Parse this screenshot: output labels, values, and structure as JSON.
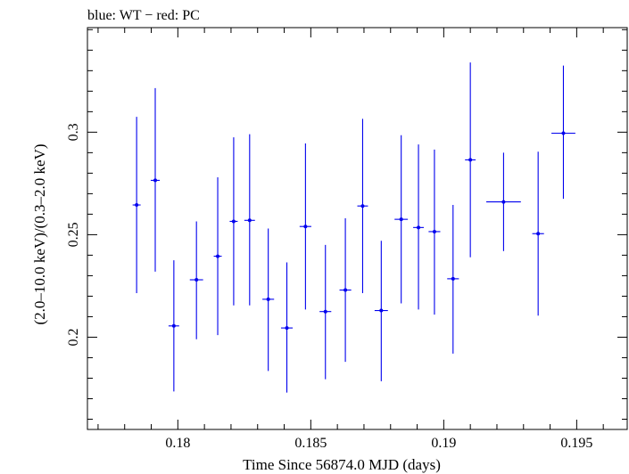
{
  "chart_data": {
    "type": "scatter",
    "title": "blue: WT − red: PC",
    "xlabel": "Time Since 56874.0 MJD (days)",
    "ylabel": "(2.0–10.0 keV)/(0.3–2.0 keV)",
    "xlim": [
      0.1766,
      0.1969
    ],
    "ylim": [
      0.155,
      0.351
    ],
    "x_ticks": [
      0.18,
      0.185,
      0.19,
      0.195
    ],
    "x_tick_labels": [
      "0.18",
      "0.185",
      "0.19",
      "0.195"
    ],
    "y_ticks": [
      0.2,
      0.25,
      0.3
    ],
    "y_tick_labels": [
      "0.2",
      "0.25",
      "0.3"
    ],
    "grid": false,
    "series": [
      {
        "color": "#0000ee",
        "points": [
          {
            "x": 0.17845,
            "xerr": 0.00015,
            "y": 0.2645,
            "ylo": 0.2215,
            "yhi": 0.3075
          },
          {
            "x": 0.17915,
            "xerr": 0.00017,
            "y": 0.2765,
            "ylo": 0.232,
            "yhi": 0.3215
          },
          {
            "x": 0.17985,
            "xerr": 0.0002,
            "y": 0.2055,
            "ylo": 0.1735,
            "yhi": 0.2375
          },
          {
            "x": 0.1807,
            "xerr": 0.00025,
            "y": 0.228,
            "ylo": 0.199,
            "yhi": 0.2565
          },
          {
            "x": 0.1815,
            "xerr": 0.00015,
            "y": 0.2395,
            "ylo": 0.201,
            "yhi": 0.278
          },
          {
            "x": 0.1821,
            "xerr": 0.00015,
            "y": 0.2565,
            "ylo": 0.2155,
            "yhi": 0.2975
          },
          {
            "x": 0.1827,
            "xerr": 0.0002,
            "y": 0.257,
            "ylo": 0.2155,
            "yhi": 0.299
          },
          {
            "x": 0.1834,
            "xerr": 0.00022,
            "y": 0.2185,
            "ylo": 0.1835,
            "yhi": 0.253
          },
          {
            "x": 0.1841,
            "xerr": 0.00022,
            "y": 0.2045,
            "ylo": 0.173,
            "yhi": 0.2365
          },
          {
            "x": 0.1848,
            "xerr": 0.00022,
            "y": 0.254,
            "ylo": 0.2135,
            "yhi": 0.2945
          },
          {
            "x": 0.18555,
            "xerr": 0.00022,
            "y": 0.2125,
            "ylo": 0.1795,
            "yhi": 0.245
          },
          {
            "x": 0.1863,
            "xerr": 0.00022,
            "y": 0.223,
            "ylo": 0.188,
            "yhi": 0.258
          },
          {
            "x": 0.18695,
            "xerr": 0.0002,
            "y": 0.264,
            "ylo": 0.2215,
            "yhi": 0.3065
          },
          {
            "x": 0.18765,
            "xerr": 0.00025,
            "y": 0.213,
            "ylo": 0.1785,
            "yhi": 0.247
          },
          {
            "x": 0.1884,
            "xerr": 0.00025,
            "y": 0.2575,
            "ylo": 0.2165,
            "yhi": 0.2985
          },
          {
            "x": 0.18905,
            "xerr": 0.0002,
            "y": 0.2535,
            "ylo": 0.2135,
            "yhi": 0.294
          },
          {
            "x": 0.18965,
            "xerr": 0.00022,
            "y": 0.2515,
            "ylo": 0.211,
            "yhi": 0.2915
          },
          {
            "x": 0.19035,
            "xerr": 0.00022,
            "y": 0.2285,
            "ylo": 0.192,
            "yhi": 0.2645
          },
          {
            "x": 0.191,
            "xerr": 0.0002,
            "y": 0.2865,
            "ylo": 0.239,
            "yhi": 0.334
          },
          {
            "x": 0.19225,
            "xerr": 0.00065,
            "y": 0.266,
            "ylo": 0.242,
            "yhi": 0.29
          },
          {
            "x": 0.19355,
            "xerr": 0.00022,
            "y": 0.2505,
            "ylo": 0.2105,
            "yhi": 0.2905
          },
          {
            "x": 0.1945,
            "xerr": 0.00045,
            "y": 0.2995,
            "ylo": 0.2675,
            "yhi": 0.3325
          }
        ]
      }
    ]
  }
}
